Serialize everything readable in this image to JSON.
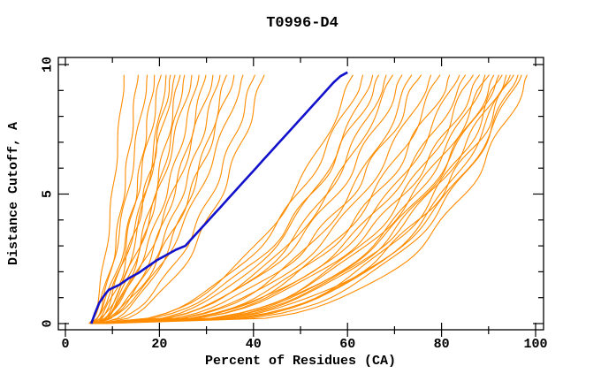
{
  "page": {
    "title": "T0996-D4"
  },
  "chart_data": {
    "type": "line",
    "title": "T0996-D4",
    "xlabel": "Percent of Residues (CA)",
    "ylabel": "Distance Cutoff, A",
    "xlim": [
      0,
      100
    ],
    "ylim": [
      0,
      10
    ],
    "x_ticks_major": [
      0,
      20,
      40,
      60,
      80,
      100
    ],
    "x_ticks_minor": [
      10,
      30,
      50,
      70,
      90
    ],
    "y_ticks_major": [
      0,
      5,
      10
    ],
    "y_ticks_minor": [
      1,
      2,
      3,
      4,
      6,
      7,
      8,
      9
    ],
    "grid": false,
    "legend": "none",
    "curve_top_y": 9.7,
    "colors": {
      "model_curves": "#ff8c00",
      "highlight_curve": "#1212cc",
      "axis": "#000000",
      "background": "#ffffff"
    },
    "highlight_series": {
      "name": "highlighted-model",
      "points": [
        [
          5.5,
          0
        ],
        [
          6.3,
          0.4
        ],
        [
          7.2,
          0.8
        ],
        [
          8.3,
          1.1
        ],
        [
          9.2,
          1.3
        ],
        [
          11.5,
          1.5
        ],
        [
          13.5,
          1.75
        ],
        [
          15.5,
          1.95
        ],
        [
          17.5,
          2.2
        ],
        [
          19.5,
          2.45
        ],
        [
          21.5,
          2.65
        ],
        [
          23.5,
          2.85
        ],
        [
          25.5,
          3.0
        ],
        [
          27,
          3.3
        ],
        [
          28.5,
          3.6
        ],
        [
          30,
          3.9
        ],
        [
          31.5,
          4.2
        ],
        [
          33,
          4.5
        ],
        [
          34.5,
          4.8
        ],
        [
          36,
          5.1
        ],
        [
          37.5,
          5.4
        ],
        [
          39,
          5.7
        ],
        [
          40.5,
          6.0
        ],
        [
          42,
          6.3
        ],
        [
          43.5,
          6.6
        ],
        [
          45,
          6.9
        ],
        [
          46.5,
          7.2
        ],
        [
          48,
          7.5
        ],
        [
          49.5,
          7.8
        ],
        [
          51,
          8.1
        ],
        [
          52.5,
          8.4
        ],
        [
          54,
          8.7
        ],
        [
          55.5,
          9.0
        ],
        [
          57,
          9.3
        ],
        [
          58.5,
          9.55
        ],
        [
          60,
          9.7
        ]
      ]
    },
    "model_curves_format": [
      "start_x_pct_at_y0",
      "end_x_pct_at_ytop",
      "shape_exponent",
      "jitter_amp_pct",
      "jitter_freq",
      "jitter_phase"
    ],
    "model_curves": [
      [
        5.2,
        12.5,
        0.62,
        0.25,
        2.2,
        0.5
      ],
      [
        5.8,
        15.5,
        0.6,
        0.3,
        2.6,
        1.2
      ],
      [
        5.0,
        17.5,
        0.65,
        0.35,
        2.1,
        2.0
      ],
      [
        6.4,
        19.0,
        0.58,
        0.3,
        2.9,
        0.2
      ],
      [
        5.5,
        20.5,
        0.66,
        0.4,
        2.4,
        1.7
      ],
      [
        6.8,
        21.5,
        0.55,
        0.3,
        2.0,
        2.6
      ],
      [
        6.0,
        22.5,
        0.63,
        0.45,
        2.7,
        3.1
      ],
      [
        5.3,
        23.5,
        0.68,
        0.35,
        2.3,
        0.9
      ],
      [
        6.6,
        24.5,
        0.57,
        0.4,
        2.5,
        1.5
      ],
      [
        7.2,
        25.5,
        0.6,
        0.3,
        2.8,
        2.2
      ],
      [
        5.6,
        27.0,
        0.64,
        0.45,
        2.2,
        0.4
      ],
      [
        6.2,
        28.5,
        0.58,
        0.35,
        2.6,
        1.9
      ],
      [
        7.0,
        30.0,
        0.55,
        0.4,
        2.4,
        2.8
      ],
      [
        5.9,
        31.5,
        0.62,
        0.5,
        2.1,
        1.1
      ],
      [
        6.5,
        33.0,
        0.56,
        0.4,
        2.7,
        0.7
      ],
      [
        7.4,
        34.5,
        0.52,
        0.45,
        2.3,
        2.4
      ],
      [
        6.1,
        36.0,
        0.58,
        0.5,
        2.5,
        3.4
      ],
      [
        5.4,
        38.0,
        0.54,
        0.45,
        2.2,
        1.4
      ],
      [
        6.9,
        40.5,
        0.5,
        0.5,
        2.6,
        0.1
      ],
      [
        7.8,
        42.5,
        0.48,
        0.55,
        2.4,
        2.0
      ],
      [
        5.5,
        61.5,
        0.4,
        0.6,
        1.8,
        0.3
      ],
      [
        6.2,
        63.5,
        0.42,
        0.7,
        2.1,
        1.6
      ],
      [
        7.0,
        65.5,
        0.38,
        0.6,
        1.9,
        2.5
      ],
      [
        5.8,
        67.0,
        0.41,
        0.8,
        2.3,
        0.8
      ],
      [
        6.5,
        68.5,
        0.36,
        0.7,
        2.0,
        3.0
      ],
      [
        7.6,
        70.0,
        0.39,
        0.6,
        1.7,
        1.2
      ],
      [
        5.2,
        72.0,
        0.37,
        0.8,
        2.2,
        2.1
      ],
      [
        6.8,
        74.0,
        0.34,
        0.7,
        1.8,
        0.5
      ],
      [
        7.3,
        76.0,
        0.38,
        0.9,
        2.4,
        1.9
      ],
      [
        5.9,
        78.0,
        0.35,
        0.7,
        2.0,
        2.8
      ],
      [
        6.3,
        80.0,
        0.33,
        0.8,
        1.9,
        0.2
      ],
      [
        7.8,
        82.0,
        0.36,
        0.9,
        2.2,
        1.0
      ],
      [
        5.4,
        84.0,
        0.32,
        0.8,
        1.8,
        2.3
      ],
      [
        6.6,
        85.5,
        0.35,
        0.7,
        2.1,
        3.2
      ],
      [
        7.1,
        87.0,
        0.31,
        0.9,
        1.9,
        0.6
      ],
      [
        5.7,
        88.5,
        0.34,
        0.8,
        2.3,
        1.4
      ],
      [
        6.9,
        89.5,
        0.3,
        0.7,
        2.0,
        2.6
      ],
      [
        7.5,
        90.5,
        0.33,
        0.9,
        1.8,
        0.9
      ],
      [
        6.0,
        91.5,
        0.29,
        0.8,
        2.2,
        1.8
      ],
      [
        6.4,
        92.5,
        0.32,
        0.7,
        2.0,
        2.9
      ],
      [
        7.2,
        93.2,
        0.28,
        0.9,
        1.9,
        0.4
      ],
      [
        5.6,
        94.0,
        0.31,
        0.8,
        2.1,
        1.3
      ],
      [
        6.7,
        94.8,
        0.27,
        0.7,
        1.8,
        2.2
      ],
      [
        7.7,
        95.6,
        0.3,
        0.9,
        2.3,
        3.3
      ],
      [
        6.1,
        96.4,
        0.26,
        0.8,
        2.0,
        0.7
      ],
      [
        7.0,
        97.2,
        0.29,
        0.7,
        1.9,
        1.6
      ],
      [
        8.2,
        98.5,
        0.25,
        0.8,
        2.1,
        2.4
      ]
    ]
  }
}
